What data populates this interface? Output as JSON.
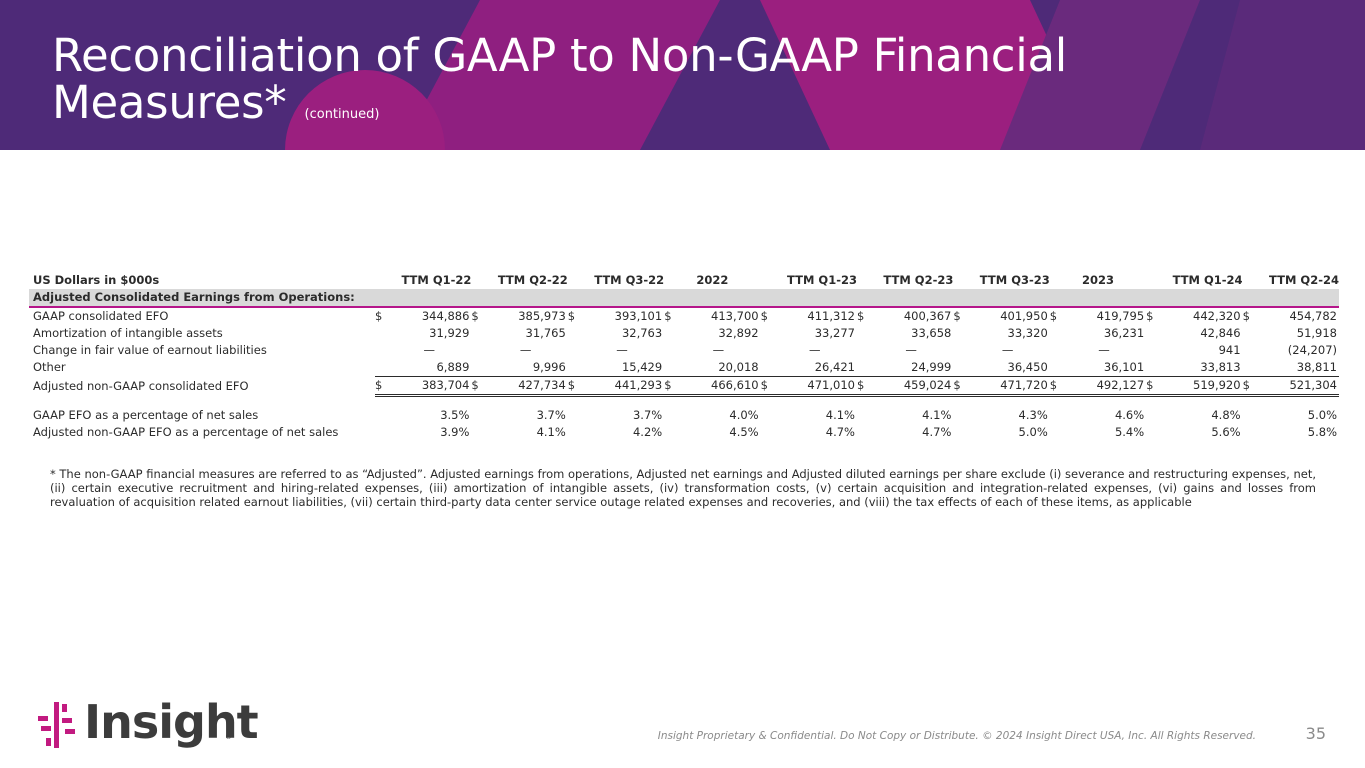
{
  "slide": {
    "title": "Reconciliation of GAAP to Non-GAAP Financial Measures*",
    "title_suffix": "(continued)",
    "colors": {
      "banner_dark": "#4e2a78",
      "banner_magenta": "#9b1f7f",
      "accent": "#b5168a"
    }
  },
  "table": {
    "header_label": "US Dollars in $000s",
    "columns": [
      "TTM Q1-22",
      "TTM Q2-22",
      "TTM Q3-22",
      "2022",
      "TTM Q1-23",
      "TTM Q2-23",
      "TTM Q3-23",
      "2023",
      "TTM Q1-24",
      "TTM Q2-24"
    ],
    "section_title": "Adjusted Consolidated Earnings from Operations:",
    "rows": [
      {
        "label": "GAAP consolidated EFO",
        "currency": "$",
        "values": [
          "344,886",
          "385,973",
          "393,101",
          "413,700",
          "411,312",
          "400,367",
          "401,950",
          "419,795",
          "442,320",
          "454,782"
        ]
      },
      {
        "label": "Amortization of intangible assets",
        "currency": "",
        "values": [
          "31,929",
          "31,765",
          "32,763",
          "32,892",
          "33,277",
          "33,658",
          "33,320",
          "36,231",
          "42,846",
          "51,918"
        ]
      },
      {
        "label": "Change in fair value of earnout liabilities",
        "currency": "",
        "values": [
          "—",
          "—",
          "—",
          "—",
          "—",
          "—",
          "—",
          "—",
          "941",
          "(24,207)"
        ]
      },
      {
        "label": "Other",
        "currency": "",
        "values": [
          "6,889",
          "9,996",
          "15,429",
          "20,018",
          "26,421",
          "24,999",
          "36,450",
          "36,101",
          "33,813",
          "38,811"
        ]
      },
      {
        "label": "Adjusted non-GAAP consolidated EFO",
        "currency": "$",
        "values": [
          "383,704",
          "427,734",
          "441,293",
          "466,610",
          "471,010",
          "459,024",
          "471,720",
          "492,127",
          "519,920",
          "521,304"
        ]
      }
    ],
    "pct_rows": [
      {
        "label": "GAAP EFO as a percentage of net sales",
        "values": [
          "3.5%",
          "3.7%",
          "3.7%",
          "4.0%",
          "4.1%",
          "4.1%",
          "4.3%",
          "4.6%",
          "4.8%",
          "5.0%"
        ]
      },
      {
        "label": "Adjusted non-GAAP EFO as a percentage of net sales",
        "values": [
          "3.9%",
          "4.1%",
          "4.2%",
          "4.5%",
          "4.7%",
          "4.7%",
          "5.0%",
          "5.4%",
          "5.6%",
          "5.8%"
        ]
      }
    ]
  },
  "footnote": "* The non-GAAP financial measures are referred to as “Adjusted”. Adjusted earnings from operations, Adjusted net earnings and Adjusted diluted earnings per share exclude (i) severance and restructuring expenses, net, (ii) certain executive recruitment and hiring-related expenses, (iii) amortization of intangible assets, (iv) transformation costs, (v) certain acquisition and integration-related expenses, (vi) gains and losses from revaluation of acquisition related earnout liabilities, (vii) certain third-party data center service outage related expenses and recoveries, and (viii) the tax effects of each of these items, as applicable",
  "footer": {
    "logo_text": "Insight",
    "logo_mark": "®",
    "legal": "Insight Proprietary & Confidential. Do Not Copy or Distribute. © 2024 Insight Direct USA, Inc. All Rights Reserved.",
    "page_number": "35"
  }
}
